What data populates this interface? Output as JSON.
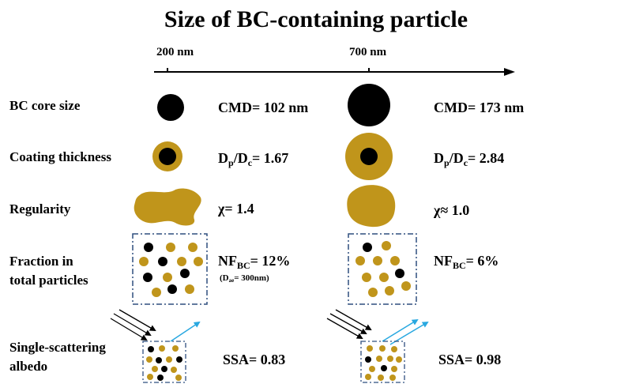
{
  "title": "Size of BC-containing particle",
  "axis": {
    "left_label": "200 nm",
    "right_label": "700 nm"
  },
  "rows": [
    {
      "label": "BC core size"
    },
    {
      "label": "Coating thickness"
    },
    {
      "label": "Regularity"
    },
    {
      "label": "Fraction in\ntotal particles"
    },
    {
      "label": "Single-scattering\nalbedo"
    }
  ],
  "left": {
    "cmd": "CMD= 102 nm",
    "dp_dc": {
      "d1": "D",
      "sub1": "p",
      "slash": "/D",
      "sub2": "c",
      "value": "= 1.67"
    },
    "chi": "χ= 1.4",
    "nf": {
      "prefix": "NF",
      "sub": "BC",
      "value": "= 12%"
    },
    "nf_note": {
      "open": "(D",
      "sub": "ae",
      "value": "= 300nm)"
    },
    "ssa": "SSA= 0.83"
  },
  "right": {
    "cmd": "CMD= 173 nm",
    "dp_dc": {
      "d1": "D",
      "sub1": "p",
      "slash": "/D",
      "sub2": "c",
      "value": "= 2.84"
    },
    "chi": "χ≈ 1.0",
    "nf": {
      "prefix": "NF",
      "sub": "BC",
      "value": "= 6%"
    },
    "ssa": "SSA= 0.98"
  },
  "colors": {
    "coating": "#C0951B",
    "core": "#000000",
    "box_border": "#2F4F7F",
    "scatter_arrow": "#29A8E0",
    "incident_arrow": "#000000"
  }
}
